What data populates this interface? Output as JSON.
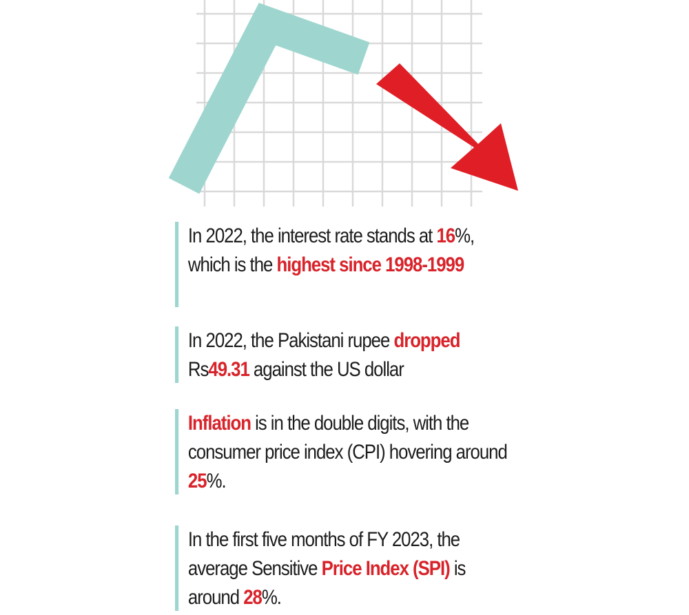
{
  "colors": {
    "teal": "#9ed6cf",
    "red": "#e01e26",
    "grid": "#d9d9d9",
    "text": "#1c1c1c",
    "highlight": "#d8232a"
  },
  "icons": {
    "rising-line": "teal-angled-line-icon",
    "falling-arrow": "red-down-arrow-icon"
  },
  "facts": [
    {
      "segments": [
        {
          "text": "In 2022, the interest rate stands at ",
          "highlight": false
        },
        {
          "text": "16",
          "highlight": true
        },
        {
          "text": "%, which is the ",
          "highlight": false
        },
        {
          "text": "highest since 1998-1999",
          "highlight": true
        }
      ]
    },
    {
      "segments": [
        {
          "text": "In 2022, the Pakistani rupee ",
          "highlight": false
        },
        {
          "text": "dropped",
          "highlight": true
        },
        {
          "text": " Rs",
          "highlight": false
        },
        {
          "text": "49.31",
          "highlight": true
        },
        {
          "text": " against the US dollar",
          "highlight": false
        }
      ]
    },
    {
      "segments": [
        {
          "text": "Inflation",
          "highlight": true
        },
        {
          "text": " is in the double digits, with the consumer price index (CPI) hovering around ",
          "highlight": false
        },
        {
          "text": "25",
          "highlight": true
        },
        {
          "text": "%.",
          "highlight": false
        }
      ]
    },
    {
      "segments": [
        {
          "text": "In the first five months of FY 2023, the average Sensitive ",
          "highlight": false
        },
        {
          "text": "Price Index (SPI)",
          "highlight": true
        },
        {
          "text": " is around ",
          "highlight": false
        },
        {
          "text": "28",
          "highlight": true
        },
        {
          "text": "%.",
          "highlight": false
        }
      ]
    }
  ]
}
